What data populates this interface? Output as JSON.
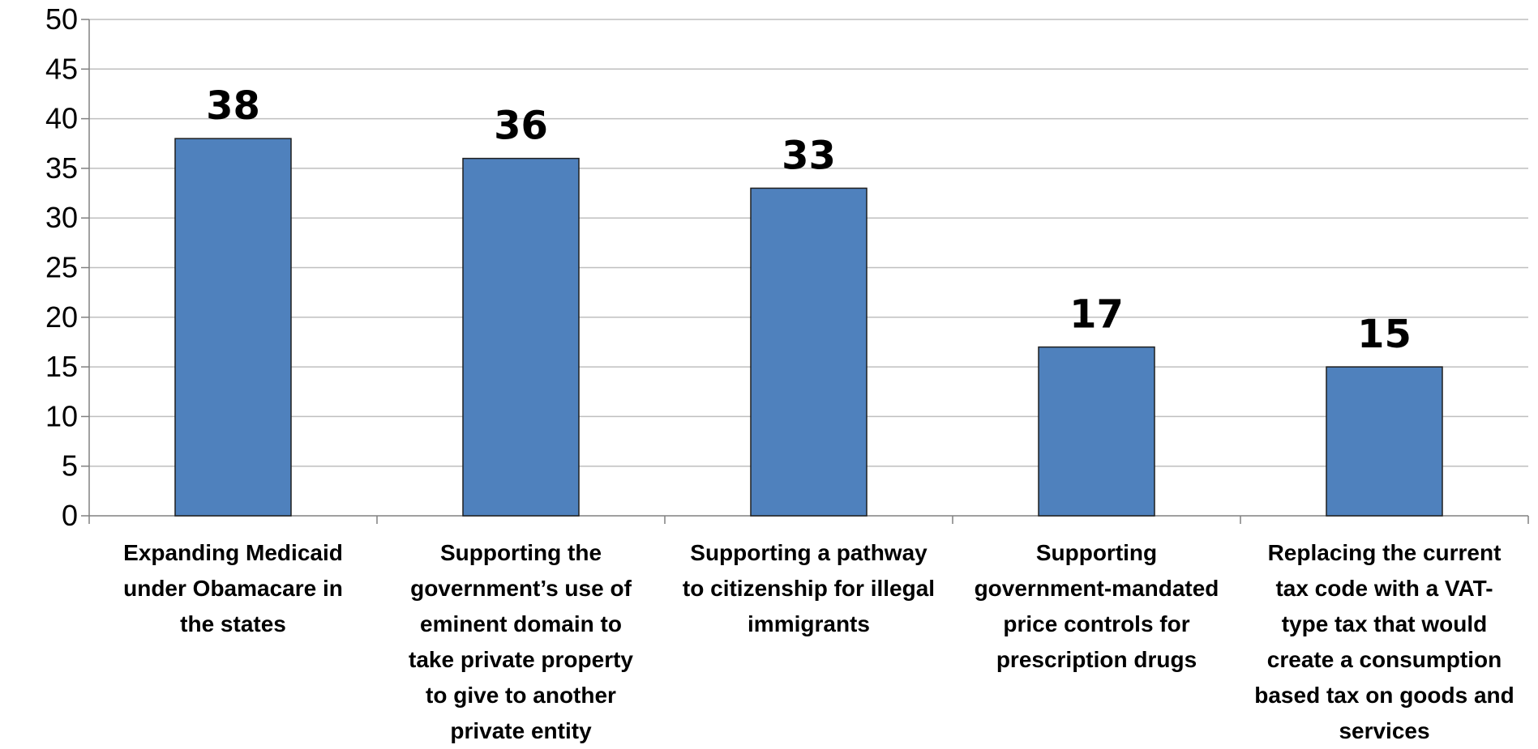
{
  "colors": {
    "bar": "#4f81bd",
    "bar_stroke": "#1f1f1f",
    "grid": "#bfbfbf",
    "axis": "#808080",
    "text": "#000000"
  },
  "chart_data": {
    "type": "bar",
    "title": "",
    "xlabel": "",
    "ylabel": "",
    "ylim": [
      0,
      50
    ],
    "ytick_step": 5,
    "grid": true,
    "categories": [
      "Expanding Medicaid under Obamacare in the states",
      "Supporting the government’s use of eminent domain to take private property to give to another private entity",
      "Supporting a pathway to citizenship for illegal immigrants",
      "Supporting government-mandated price controls for prescription drugs",
      "Replacing the current tax code with a VAT-type tax that would create a consumption based tax on goods and services"
    ],
    "category_lines": [
      [
        "Expanding Medicaid",
        "under Obamacare in",
        "the states"
      ],
      [
        "Supporting the",
        "government’s use of",
        "eminent domain to",
        "take private property",
        "to give to another",
        "private entity"
      ],
      [
        "Supporting a pathway",
        "to citizenship for illegal",
        "immigrants"
      ],
      [
        "Supporting",
        "government-mandated",
        "price controls for",
        "prescription drugs"
      ],
      [
        "Replacing the current",
        "tax code with a VAT-",
        "type tax that would",
        "create a consumption",
        "based tax on goods and",
        "services"
      ]
    ],
    "values": [
      38,
      36,
      33,
      17,
      15
    ],
    "data_labels": [
      "38",
      "36",
      "33",
      "17",
      "15"
    ]
  }
}
